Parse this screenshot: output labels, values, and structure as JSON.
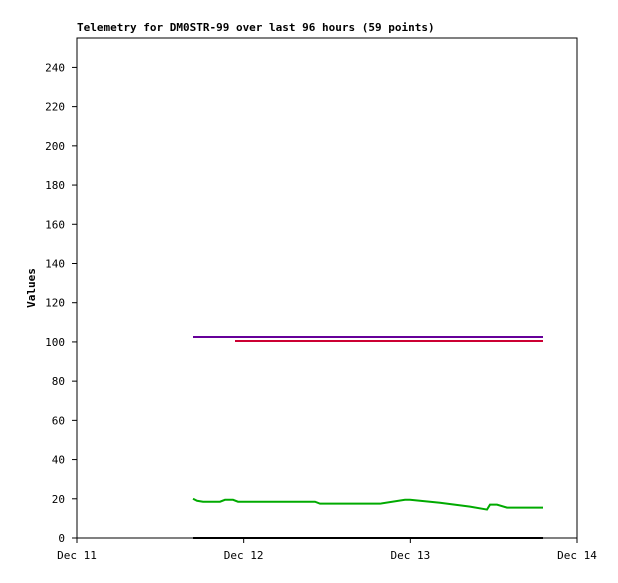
{
  "chart_data": {
    "type": "line",
    "title": "Telemetry for DM0STR-99 over last 96 hours (59 points)",
    "y_label": "Values",
    "xlim": [
      0,
      3
    ],
    "xticks": [
      {
        "value": 0,
        "label": "Dec 11"
      },
      {
        "value": 1,
        "label": "Dec 12"
      },
      {
        "value": 2,
        "label": "Dec 13"
      },
      {
        "value": 3,
        "label": "Dec 14"
      }
    ],
    "ylim": [
      0,
      255
    ],
    "yticks": [
      0,
      20,
      40,
      60,
      80,
      100,
      120,
      140,
      160,
      180,
      200,
      220,
      240
    ],
    "series": [
      {
        "color": "#660099",
        "x": [
          0.696,
          2.796
        ],
        "values": [
          102.5,
          102.5
        ]
      },
      {
        "color": "#cc0033",
        "x": [
          0.948,
          2.796
        ],
        "values": [
          100.5,
          100.5
        ]
      },
      {
        "color": "#00aa00",
        "x": [
          0.696,
          0.72,
          0.756,
          0.858,
          0.888,
          0.936,
          0.966,
          1.428,
          1.458,
          1.818,
          1.968,
          1.998,
          2.178,
          2.358,
          2.46,
          2.478,
          2.52,
          2.58,
          2.796
        ],
        "values": [
          20,
          19,
          18.5,
          18.5,
          19.5,
          19.5,
          18.5,
          18.5,
          17.5,
          17.5,
          19.5,
          19.5,
          18,
          16,
          14.5,
          17,
          17,
          15.5,
          15.5
        ]
      },
      {
        "color": "#000000",
        "x": [
          0.696,
          2.796
        ],
        "values": [
          0,
          0
        ]
      }
    ]
  }
}
